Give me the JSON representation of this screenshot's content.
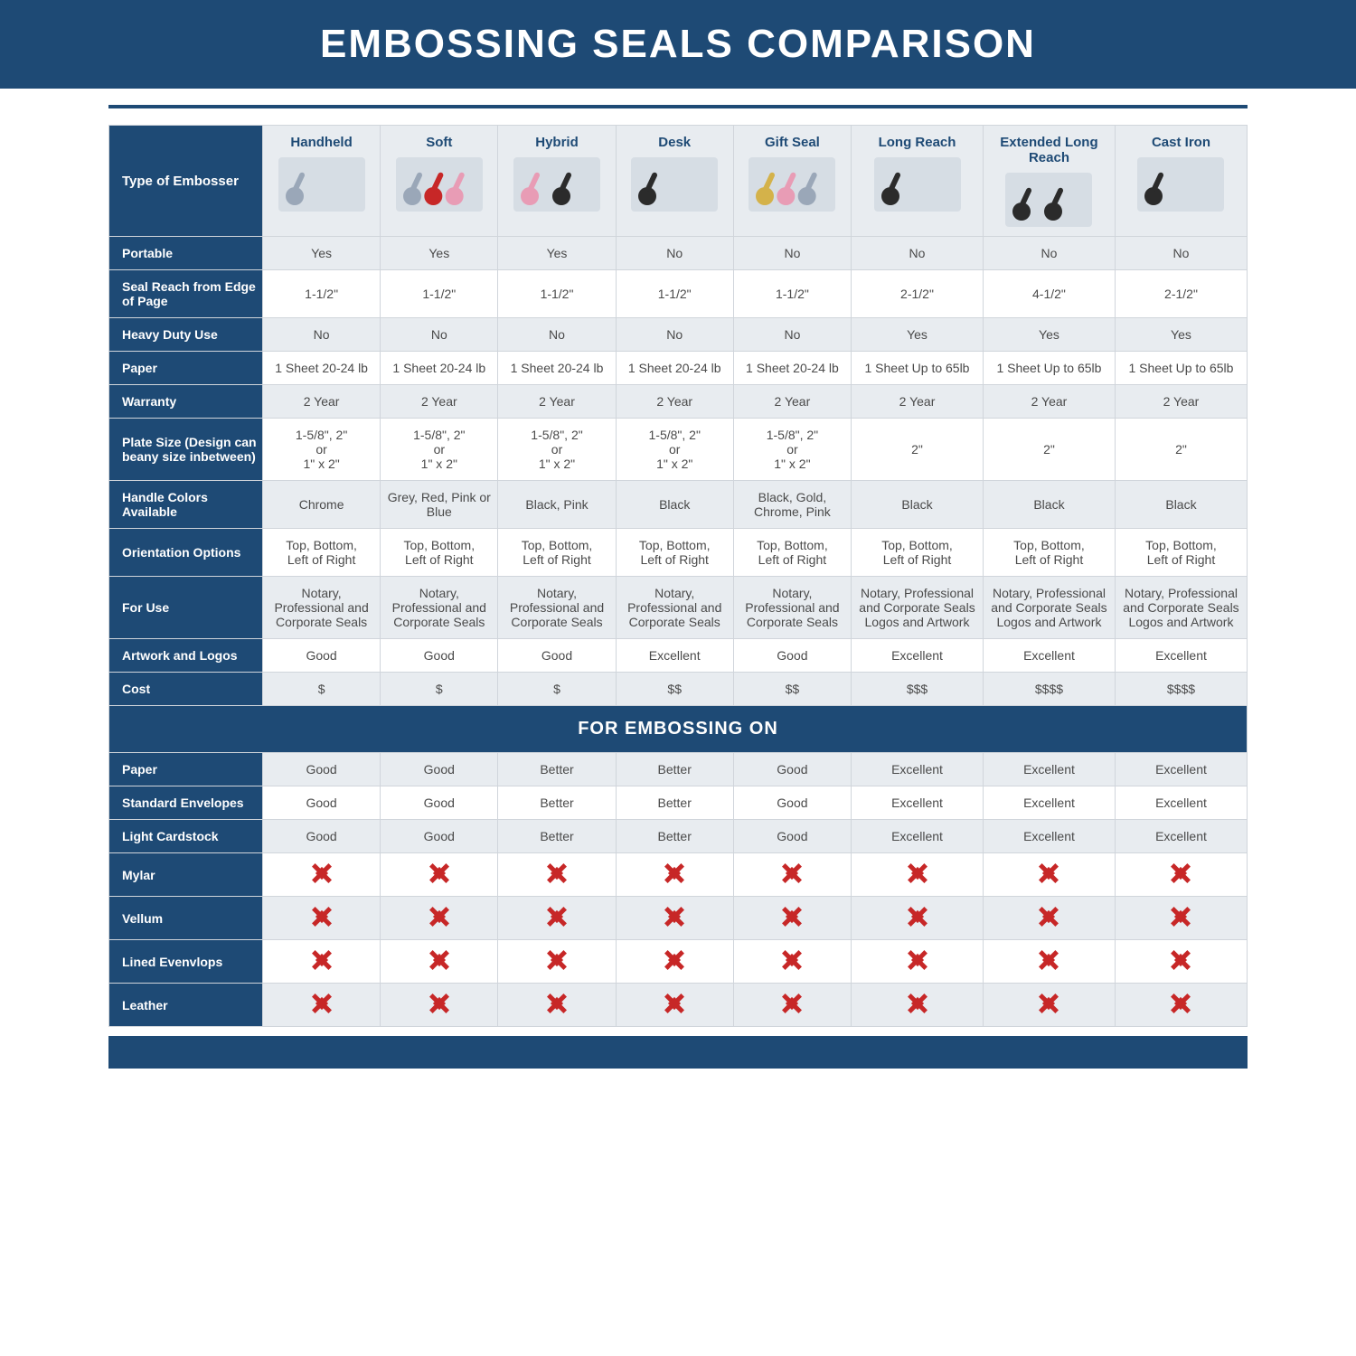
{
  "title": "EMBOSSING SEALS COMPARISON",
  "section_band": "FOR EMBOSSING ON",
  "colors": {
    "primary": "#1e4a75",
    "light_row": "#e8ecf0",
    "border": "#d0d5db",
    "text": "#4a4a4a",
    "x_color": "#c72727",
    "white": "#ffffff"
  },
  "typography": {
    "title_fontsize": 44,
    "header_fontsize": 15,
    "body_fontsize": 14,
    "section_fontsize": 20
  },
  "row_labels": {
    "type": "Type of Embosser",
    "portable": "Portable",
    "reach": "Seal Reach from Edge of Page",
    "heavy": "Heavy Duty Use",
    "paper_spec": "Paper",
    "warranty": "Warranty",
    "plate": "Plate Size (Design can beany size inbetween)",
    "handle": "Handle Colors Available",
    "orient": "Orientation Options",
    "foruse": "For Use",
    "artwork": "Artwork and Logos",
    "cost": "Cost",
    "emb_paper": "Paper",
    "emb_env": "Standard Envelopes",
    "emb_card": "Light Cardstock",
    "emb_mylar": "Mylar",
    "emb_vellum": "Vellum",
    "emb_lined": "Lined Evenvlops",
    "emb_leather": "Leather"
  },
  "columns": [
    "Handheld",
    "Soft",
    "Hybrid",
    "Desk",
    "Gift Seal",
    "Long Reach",
    "Extended Long Reach",
    "Cast Iron"
  ],
  "data": {
    "portable": [
      "Yes",
      "Yes",
      "Yes",
      "No",
      "No",
      "No",
      "No",
      "No"
    ],
    "reach": [
      "1-1/2\"",
      "1-1/2\"",
      "1-1/2\"",
      "1-1/2\"",
      "1-1/2\"",
      "2-1/2\"",
      "4-1/2\"",
      "2-1/2\""
    ],
    "heavy": [
      "No",
      "No",
      "No",
      "No",
      "No",
      "Yes",
      "Yes",
      "Yes"
    ],
    "paper_spec": [
      "1 Sheet 20-24 lb",
      "1 Sheet 20-24 lb",
      "1 Sheet 20-24 lb",
      "1 Sheet 20-24 lb",
      "1 Sheet 20-24 lb",
      "1 Sheet Up to 65lb",
      "1 Sheet Up to 65lb",
      "1 Sheet Up to 65lb"
    ],
    "warranty": [
      "2 Year",
      "2 Year",
      "2 Year",
      "2 Year",
      "2 Year",
      "2 Year",
      "2 Year",
      "2 Year"
    ],
    "plate": [
      "1-5/8\", 2\"\nor\n1\" x 2\"",
      "1-5/8\", 2\"\nor\n1\" x 2\"",
      "1-5/8\", 2\"\nor\n1\" x 2\"",
      "1-5/8\", 2\"\nor\n1\" x 2\"",
      "1-5/8\", 2\"\nor\n1\" x 2\"",
      "2\"",
      "2\"",
      "2\""
    ],
    "handle": [
      "Chrome",
      "Grey, Red, Pink or Blue",
      "Black, Pink",
      "Black",
      "Black, Gold, Chrome, Pink",
      "Black",
      "Black",
      "Black"
    ],
    "orient": [
      "Top, Bottom,\nLeft of Right",
      "Top, Bottom,\nLeft of Right",
      "Top, Bottom,\nLeft of Right",
      "Top, Bottom,\nLeft of Right",
      "Top, Bottom,\nLeft of Right",
      "Top, Bottom,\nLeft of Right",
      "Top, Bottom,\nLeft of Right",
      "Top, Bottom,\nLeft of Right"
    ],
    "foruse": [
      "Notary, Professional and Corporate Seals",
      "Notary, Professional and Corporate Seals",
      "Notary, Professional and Corporate Seals",
      "Notary, Professional and Corporate Seals",
      "Notary, Professional and Corporate Seals",
      "Notary, Professional and Corporate Seals Logos and Artwork",
      "Notary, Professional and Corporate Seals Logos and Artwork",
      "Notary, Professional and Corporate Seals Logos and Artwork"
    ],
    "artwork": [
      "Good",
      "Good",
      "Good",
      "Excellent",
      "Good",
      "Excellent",
      "Excellent",
      "Excellent"
    ],
    "cost": [
      "$",
      "$",
      "$",
      "$$",
      "$$",
      "$$$",
      "$$$$",
      "$$$$"
    ],
    "emb_paper": [
      "Good",
      "Good",
      "Better",
      "Better",
      "Good",
      "Excellent",
      "Excellent",
      "Excellent"
    ],
    "emb_env": [
      "Good",
      "Good",
      "Better",
      "Better",
      "Good",
      "Excellent",
      "Excellent",
      "Excellent"
    ],
    "emb_card": [
      "Good",
      "Good",
      "Better",
      "Better",
      "Good",
      "Excellent",
      "Excellent",
      "Excellent"
    ],
    "emb_mylar": [
      "X",
      "X",
      "X",
      "X",
      "X",
      "X",
      "X",
      "X"
    ],
    "emb_vellum": [
      "X",
      "X",
      "X",
      "X",
      "X",
      "X",
      "X",
      "X"
    ],
    "emb_lined": [
      "X",
      "X",
      "X",
      "X",
      "X",
      "X",
      "X",
      "X"
    ],
    "emb_leather": [
      "X",
      "X",
      "X",
      "X",
      "X",
      "X",
      "X",
      "X"
    ]
  },
  "thumb_colors": {
    "Handheld": [
      "#9aa7b8"
    ],
    "Soft": [
      "#9aa7b8",
      "#c72727",
      "#e89cb5"
    ],
    "Hybrid": [
      "#e89cb5",
      "#2b2b2b"
    ],
    "Desk": [
      "#2b2b2b"
    ],
    "Gift Seal": [
      "#d4b24a",
      "#e89cb5",
      "#9aa7b8"
    ],
    "Long Reach": [
      "#2b2b2b"
    ],
    "Extended Long Reach": [
      "#2b2b2b",
      "#2b2b2b"
    ],
    "Cast Iron": [
      "#2b2b2b"
    ]
  }
}
